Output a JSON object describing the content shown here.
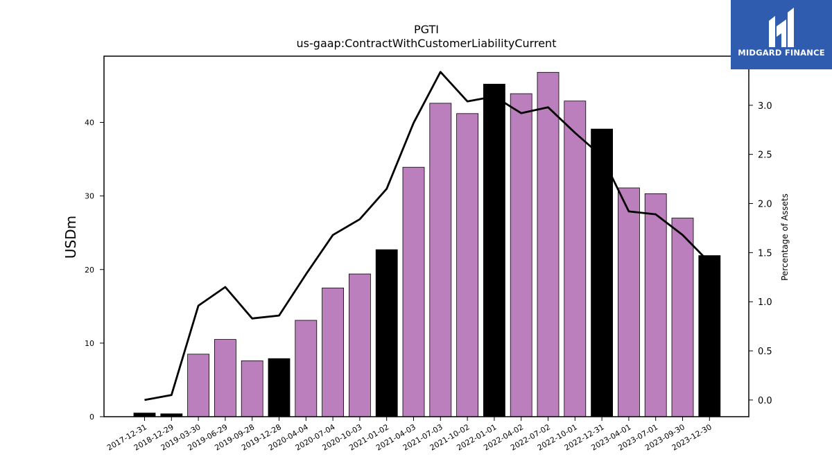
{
  "chart_data": {
    "type": "bar",
    "title": "PGTI",
    "subtitle": "us-gaap:ContractWithCustomerLiabilityCurrent",
    "ylabel": "USDm",
    "ylabel_right": "Percentage of Assets",
    "ylim": [
      0,
      49
    ],
    "ylim_right": [
      -0.17,
      3.5
    ],
    "yticks": [
      0,
      10,
      20,
      30,
      40
    ],
    "yticks_right": [
      0.0,
      0.5,
      1.0,
      1.5,
      2.0,
      2.5,
      3.0
    ],
    "yticks_right_labels": [
      "0.0",
      "0.5",
      "1.0",
      "1.5",
      "2.0",
      "2.5",
      "3.0"
    ],
    "categories": [
      "2017-12-31",
      "2018-12-29",
      "2019-03-30",
      "2019-06-29",
      "2019-09-28",
      "2019-12-28",
      "2020-04-04",
      "2020-07-04",
      "2020-10-03",
      "2021-01-02",
      "2021-04-03",
      "2021-07-03",
      "2021-10-02",
      "2022-01-01",
      "2022-04-02",
      "2022-07-02",
      "2022-10-01",
      "2022-12-31",
      "2023-04-01",
      "2023-07-01",
      "2023-09-30",
      "2023-12-30"
    ],
    "series": [
      {
        "kind": "bar",
        "values": [
          0.5,
          0.4,
          8.5,
          10.5,
          7.6,
          7.9,
          13.1,
          17.5,
          19.4,
          22.7,
          33.9,
          42.6,
          41.2,
          45.2,
          43.9,
          46.8,
          42.9,
          39.1,
          31.1,
          30.3,
          27.0,
          21.9
        ],
        "period_type": [
          "annual",
          "annual",
          "quarter",
          "quarter",
          "quarter",
          "annual",
          "quarter",
          "quarter",
          "quarter",
          "annual",
          "quarter",
          "quarter",
          "quarter",
          "annual",
          "quarter",
          "quarter",
          "quarter",
          "annual",
          "quarter",
          "quarter",
          "quarter",
          "annual"
        ]
      },
      {
        "kind": "line",
        "axis": "right",
        "values": [
          0.0,
          0.05,
          0.96,
          1.15,
          0.83,
          0.86,
          1.28,
          1.68,
          1.84,
          2.15,
          2.82,
          3.34,
          3.04,
          3.09,
          2.92,
          2.98,
          2.72,
          2.48,
          1.92,
          1.89,
          1.68,
          1.4
        ]
      }
    ],
    "colors": {
      "quarter": "#bb7fbd",
      "annual": "#000000",
      "line": "#000000"
    },
    "grid": false,
    "legend": "none"
  },
  "logo": {
    "text": "MIDGARD FINANCE",
    "background": "#2f5caf"
  }
}
